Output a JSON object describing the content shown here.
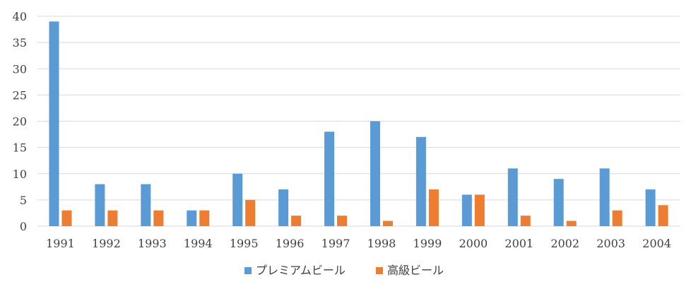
{
  "chart_data": {
    "type": "bar",
    "categories": [
      "1991",
      "1992",
      "1993",
      "1994",
      "1995",
      "1996",
      "1997",
      "1998",
      "1999",
      "2000",
      "2001",
      "2002",
      "2003",
      "2004"
    ],
    "series": [
      {
        "name": "プレミアムビール",
        "color": "#5b9bd5",
        "values": [
          39,
          8,
          8,
          3,
          10,
          7,
          18,
          20,
          17,
          6,
          11,
          9,
          11,
          7
        ]
      },
      {
        "name": "高級ビール",
        "color": "#ed7d31",
        "values": [
          3,
          3,
          3,
          3,
          5,
          2,
          2,
          1,
          7,
          6,
          2,
          1,
          3,
          4
        ]
      }
    ],
    "ylim": [
      0,
      40
    ],
    "yticks": [
      "0",
      "5",
      "10",
      "15",
      "20",
      "25",
      "30",
      "35",
      "40"
    ],
    "grid": true,
    "legend_position": "bottom"
  }
}
